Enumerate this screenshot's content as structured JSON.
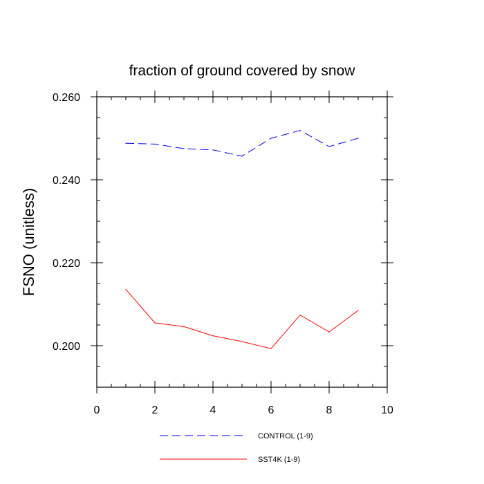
{
  "chart_data": {
    "type": "line",
    "title": "fraction of ground covered by snow",
    "xlabel": "",
    "ylabel": "FSNO  (unitless)",
    "xlim": [
      0,
      10
    ],
    "ylim": [
      0.19,
      0.26
    ],
    "x_ticks": [
      0,
      2,
      4,
      6,
      8,
      10
    ],
    "x_tick_labels": [
      "0",
      "2",
      "4",
      "6",
      "8",
      "10"
    ],
    "y_ticks": [
      0.2,
      0.22,
      0.24,
      0.26
    ],
    "y_tick_labels": [
      "0.200",
      "0.220",
      "0.240",
      "0.260"
    ],
    "x_minor_step": 0.5,
    "y_minor_step": 0.005,
    "grid": false,
    "legend_position": "bottom",
    "x": [
      1,
      2,
      3,
      4,
      5,
      6,
      7,
      8,
      9
    ],
    "series": [
      {
        "name": "CONTROL (1-9)",
        "color": "#0000ff",
        "style": "dashed",
        "values": [
          0.2488,
          0.2486,
          0.2475,
          0.2472,
          0.2457,
          0.25,
          0.2519,
          0.248,
          0.25
        ]
      },
      {
        "name": "SST4K (1-9)",
        "color": "#ff0000",
        "style": "solid",
        "values": [
          0.2136,
          0.2055,
          0.2046,
          0.2024,
          0.201,
          0.1993,
          0.2074,
          0.2033,
          0.2085
        ]
      }
    ]
  }
}
